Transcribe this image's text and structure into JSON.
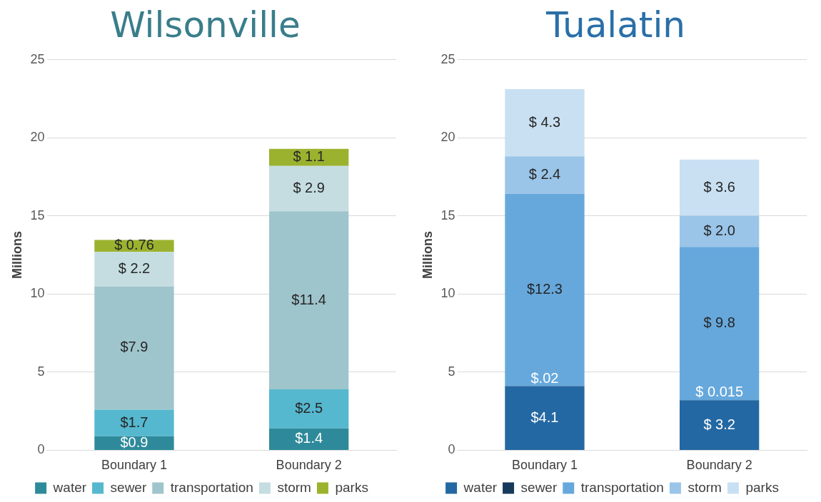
{
  "chart_data": [
    {
      "type": "bar",
      "title": "Wilsonville",
      "ylabel": "Millions",
      "categories": [
        "Boundary 1",
        "Boundary 2"
      ],
      "stacked": true,
      "ylim": [
        0,
        25
      ],
      "yticks": [
        0,
        5,
        10,
        15,
        20,
        25
      ],
      "grid": "y",
      "legend": "bottom",
      "series": [
        {
          "name": "water",
          "color": "#2e8a9a",
          "values": [
            0.9,
            1.4
          ],
          "value_labels": [
            "$0.9",
            "$1.4"
          ]
        },
        {
          "name": "sewer",
          "color": "#55b8cf",
          "values": [
            1.7,
            2.5
          ],
          "value_labels": [
            "$1.7",
            "$2.5"
          ]
        },
        {
          "name": "transportation",
          "color": "#9fc5cc",
          "values": [
            7.9,
            11.4
          ],
          "value_labels": [
            "$7.9",
            "$11.4"
          ]
        },
        {
          "name": "storm",
          "color": "#c5dde1",
          "values": [
            2.2,
            2.9
          ],
          "value_labels": [
            "$ 2.2",
            "$ 2.9"
          ]
        },
        {
          "name": "parks",
          "color": "#9bb22e",
          "values": [
            0.76,
            1.1
          ],
          "value_labels": [
            "$ 0.76",
            "$ 1.1"
          ]
        }
      ]
    },
    {
      "type": "bar",
      "title": "Tualatin",
      "ylabel": "Millions",
      "categories": [
        "Boundary 1",
        "Boundary 2"
      ],
      "stacked": true,
      "ylim": [
        0,
        25
      ],
      "yticks": [
        0,
        5,
        10,
        15,
        20,
        25
      ],
      "grid": "y",
      "legend": "bottom",
      "series": [
        {
          "name": "water",
          "color": "#2368a2",
          "values": [
            4.1,
            3.2
          ],
          "value_labels": [
            "$4.1",
            "$ 3.2"
          ]
        },
        {
          "name": "sewer",
          "color": "#163a5c",
          "values": [
            0.02,
            0.015
          ],
          "value_labels": [
            "$.02",
            "$ 0.015"
          ]
        },
        {
          "name": "transportation",
          "color": "#66a8dc",
          "values": [
            12.3,
            9.8
          ],
          "value_labels": [
            "$12.3",
            "$ 9.8"
          ]
        },
        {
          "name": "storm",
          "color": "#9ac5e8",
          "values": [
            2.4,
            2.0
          ],
          "value_labels": [
            "$ 2.4",
            "$ 2.0"
          ]
        },
        {
          "name": "parks",
          "color": "#c9e0f2",
          "values": [
            4.3,
            3.6
          ],
          "value_labels": [
            "$ 4.3",
            "$ 3.6"
          ]
        }
      ]
    }
  ]
}
